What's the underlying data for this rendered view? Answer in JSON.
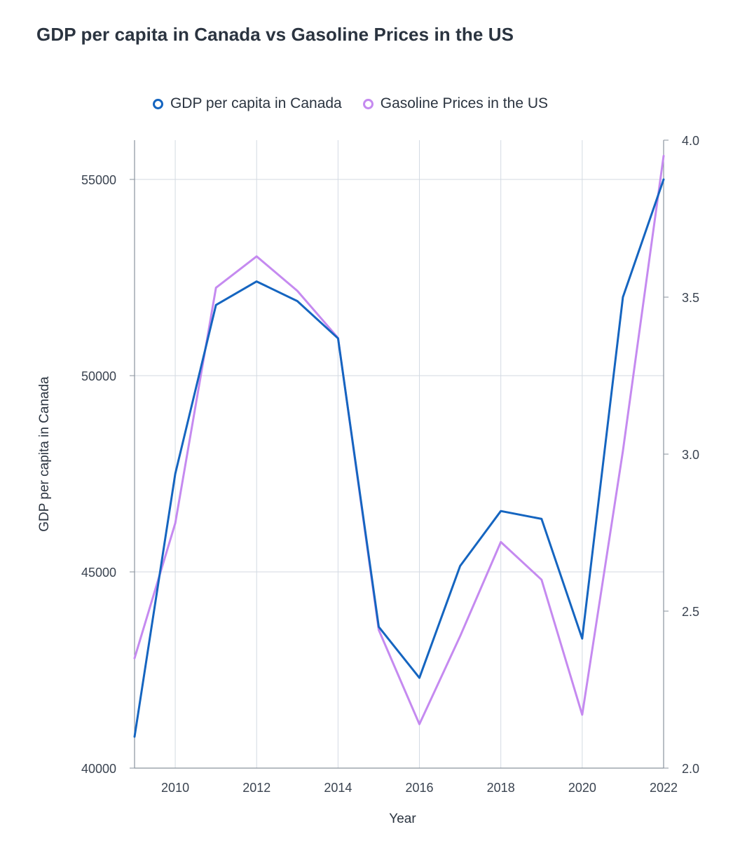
{
  "chart_data": {
    "type": "line",
    "title": "GDP per capita in Canada vs Gasoline Prices in the US",
    "xlabel": "Year",
    "ylabel": "GDP per capita in Canada",
    "y2label": "",
    "x": [
      2009,
      2010,
      2011,
      2012,
      2013,
      2014,
      2015,
      2016,
      2017,
      2018,
      2019,
      2020,
      2021,
      2022
    ],
    "x_ticks": [
      2010,
      2012,
      2014,
      2016,
      2018,
      2020,
      2022
    ],
    "xlim": [
      2009,
      2022
    ],
    "ylim": [
      40000,
      56000
    ],
    "y_ticks": [
      40000,
      45000,
      50000,
      55000
    ],
    "y2lim": [
      2.0,
      4.0
    ],
    "y2_ticks": [
      "2.0",
      "2.5",
      "3.0",
      "3.5",
      "4.0"
    ],
    "grid": true,
    "legend_position": "top",
    "series": [
      {
        "name": "GDP per capita in Canada",
        "axis": "left",
        "color": "#1565c0",
        "values": [
          40800,
          47500,
          51800,
          52400,
          51900,
          50950,
          43600,
          42300,
          45150,
          46550,
          46350,
          43300,
          52000,
          55000
        ]
      },
      {
        "name": "Gasoline Prices in the US",
        "axis": "right",
        "color": "#c58af0",
        "values": [
          2.35,
          2.78,
          3.53,
          3.63,
          3.52,
          3.37,
          2.44,
          2.14,
          2.42,
          2.72,
          2.6,
          2.17,
          3.01,
          3.95
        ]
      }
    ]
  }
}
